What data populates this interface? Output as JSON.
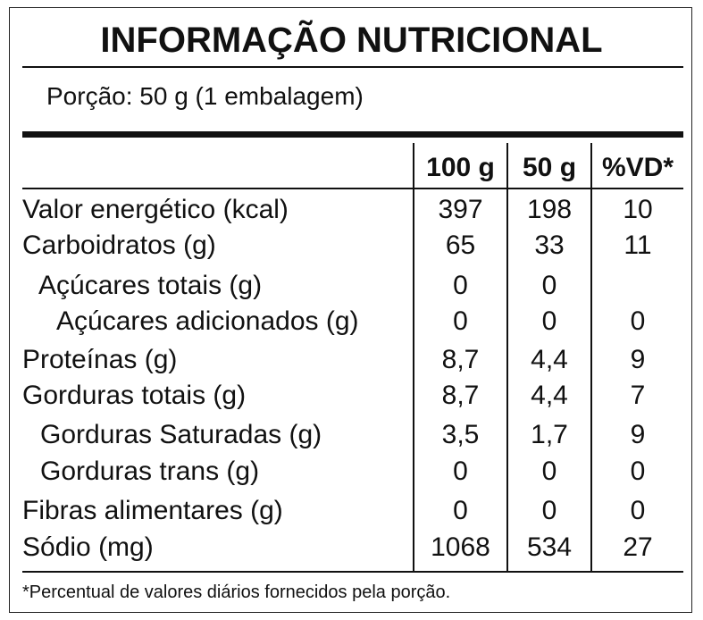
{
  "title": "INFORMAÇÃO NUTRICIONAL",
  "serving": "Porção: 50 g (1 embalagem)",
  "table": {
    "header": [
      "100 g",
      "50 g",
      "%VD*"
    ],
    "rows": [
      [
        "Valor energético (kcal)",
        "397",
        "198",
        "10"
      ],
      [
        "Carboidratos (g)",
        "65",
        "33",
        "11"
      ],
      [
        "Açúcares totais (g)",
        "0",
        "0",
        null
      ],
      [
        "Açúcares adicionados (g)",
        "0",
        "0",
        "0"
      ],
      [
        "Proteínas (g)",
        "8,7",
        "4,4",
        "9"
      ],
      [
        "Gorduras totais (g)",
        "8,7",
        "4,4",
        "7"
      ],
      [
        "Gorduras Saturadas (g)",
        "3,5",
        "1,7",
        "9"
      ],
      [
        "Gorduras trans (g)",
        "0",
        "0",
        "0"
      ],
      [
        "Fibras alimentares (g)",
        "0",
        "0",
        "0"
      ],
      [
        "Sódio (mg)",
        "1068",
        "534",
        "27"
      ]
    ]
  },
  "footnote": "*Percentual de valores diários fornecidos pela porção."
}
